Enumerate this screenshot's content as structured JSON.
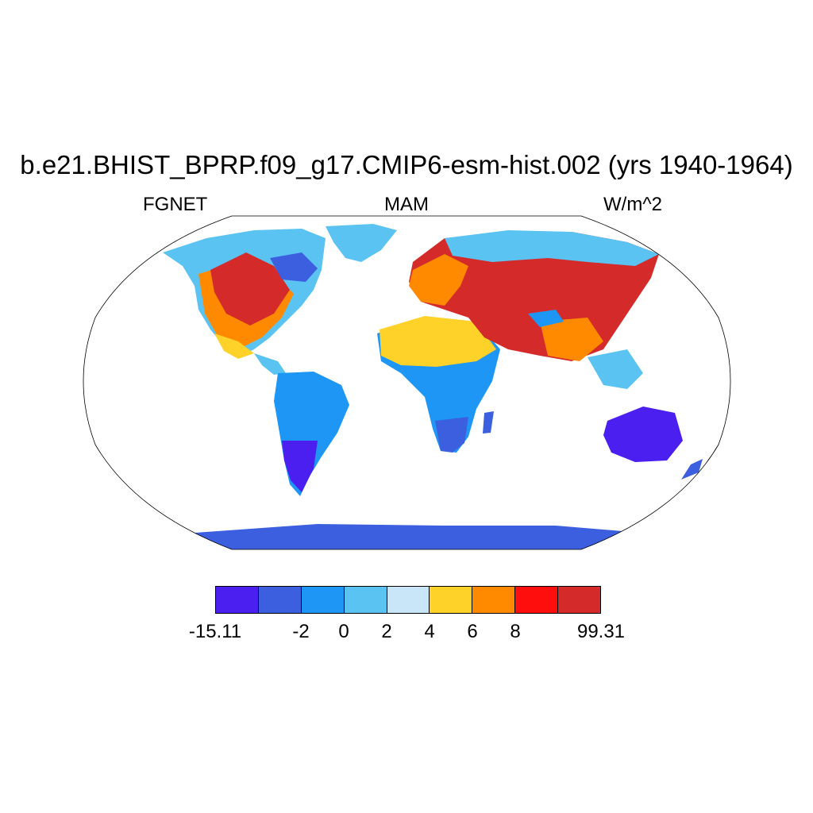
{
  "header": {
    "title": "b.e21.BHIST_BPRP.f09_g17.CMIP6-esm-hist.002 (yrs 1940-1964)",
    "left_label": "FGNET",
    "center_label": "MAM",
    "right_label": "W/m^2"
  },
  "colorbar": {
    "colors": [
      "#4a1fef",
      "#3c5fe0",
      "#1e96f5",
      "#5ac3f2",
      "#c8e6f8",
      "#ffd22a",
      "#ff8a00",
      "#ff0e0e",
      "#d42a2a"
    ],
    "labels": [
      "-15.11",
      "-2",
      "0",
      "2",
      "4",
      "6",
      "8",
      "99.31"
    ]
  }
}
